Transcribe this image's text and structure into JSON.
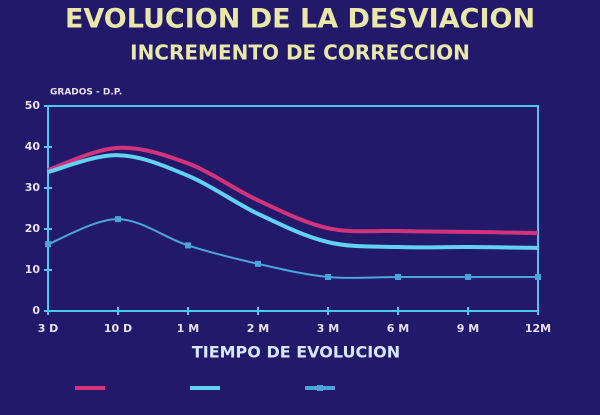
{
  "chart_data": {
    "type": "line",
    "title": "EVOLUCION DE LA DESVIACION",
    "subtitle": "INCREMENTO DE CORRECCION",
    "y_label": "GRADOS - D.P.",
    "x_label": "TIEMPO DE EVOLUCION",
    "categories": [
      "3 D",
      "10 D",
      "1 M",
      "2 M",
      "3 M",
      "6 M",
      "9 M",
      "12M"
    ],
    "series": [
      {
        "color": "#d2347c",
        "values": [
          34.4,
          39.8,
          36,
          27,
          20.2,
          19.5,
          19.3,
          19
        ]
      },
      {
        "color": "#62d2f2",
        "values": [
          33.9,
          38,
          33,
          23.7,
          16.8,
          15.6,
          15.6,
          15.4
        ]
      },
      {
        "color": "#4aa6da",
        "marker": "square",
        "values": [
          16.3,
          22.4,
          16,
          11.5,
          8.3,
          8.3,
          8.3,
          8.3
        ]
      }
    ],
    "ylim": [
      0,
      50
    ],
    "yticks": [
      0,
      10,
      20,
      30,
      40,
      50
    ],
    "axis_color": "#4fc6ee"
  }
}
